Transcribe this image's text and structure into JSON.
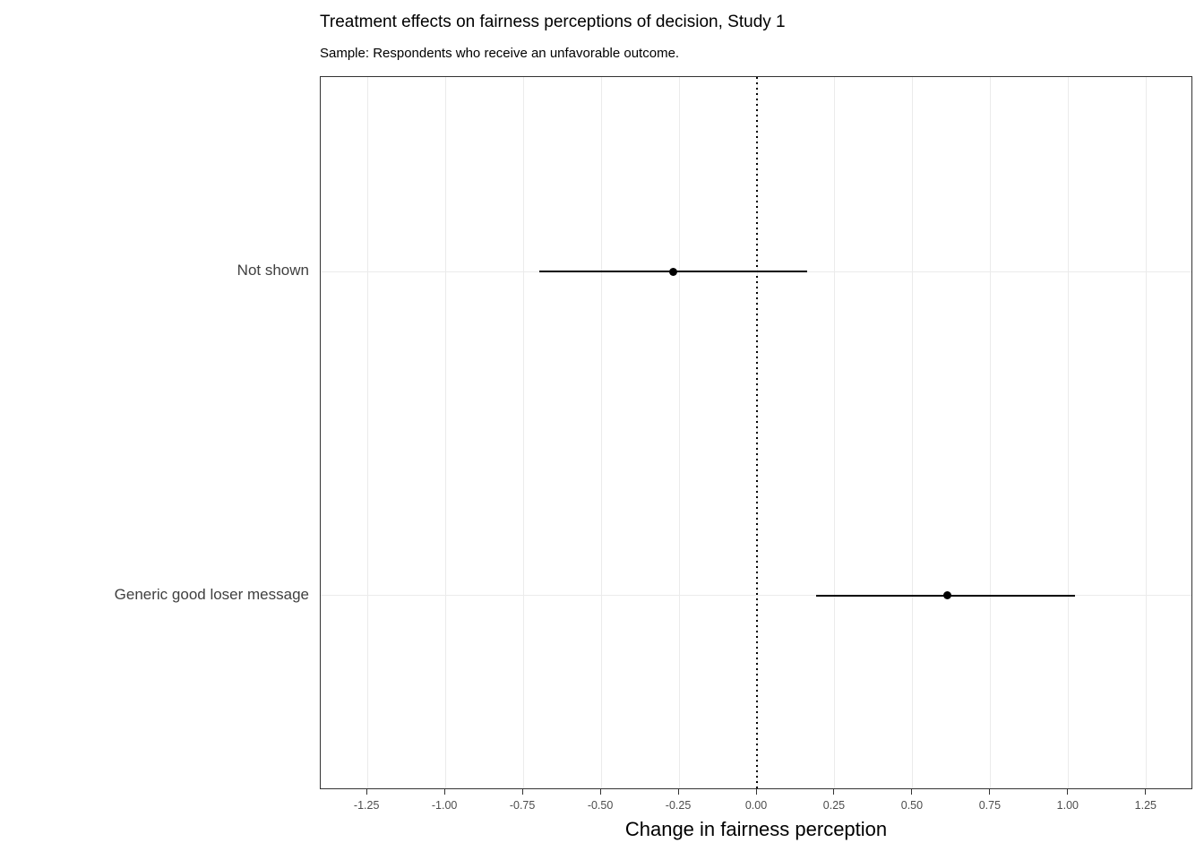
{
  "chart_data": {
    "type": "scatter",
    "subtype": "coefficient-plot-with-error-bars",
    "title": "Treatment effects on fairness perceptions of decision, Study 1",
    "subtitle": "Sample: Respondents who receive an unfavorable outcome.",
    "xlabel": "Change in fairness perception",
    "ylabel": "",
    "xlim": [
      -1.4,
      1.4
    ],
    "x_ticks": [
      -1.25,
      -1.0,
      -0.75,
      -0.5,
      -0.25,
      0.0,
      0.25,
      0.5,
      0.75,
      1.0,
      1.25
    ],
    "x_tick_labels": [
      "-1.25",
      "-1.00",
      "-0.75",
      "-0.50",
      "-0.25",
      "0.00",
      "0.25",
      "0.50",
      "0.75",
      "1.00",
      "1.25"
    ],
    "reference_line_x": 0,
    "reference_line_style": "dotted",
    "grid": true,
    "legend_position": "none",
    "rows": [
      {
        "category": "Not shown",
        "estimate": -0.27,
        "ci_low": -0.7,
        "ci_high": 0.16
      },
      {
        "category": "Generic good loser message",
        "estimate": 0.61,
        "ci_low": 0.19,
        "ci_high": 1.02
      }
    ],
    "colors": {
      "point": "#000000",
      "errorbar": "#000000",
      "gridline": "#ebebeb",
      "panel_border": "#333333",
      "axis_text": "#4d4d4d"
    }
  }
}
